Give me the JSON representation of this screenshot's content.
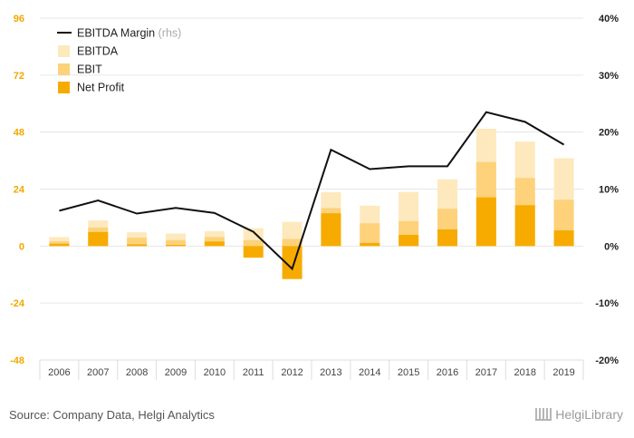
{
  "chart_data": {
    "type": "bar",
    "categories": [
      "2006",
      "2007",
      "2008",
      "2009",
      "2010",
      "2011",
      "2012",
      "2013",
      "2014",
      "2015",
      "2016",
      "2017",
      "2018",
      "2019"
    ],
    "series": [
      {
        "name": "EBITDA",
        "kind": "bar",
        "color": "#fde9bd",
        "values": [
          3.8,
          10.8,
          5.8,
          5.3,
          6.3,
          7.5,
          10.2,
          22.7,
          17.0,
          22.8,
          28.1,
          49.4,
          44.0,
          37.0
        ]
      },
      {
        "name": "EBIT",
        "kind": "bar",
        "color": "#fdd27a",
        "values": [
          2.0,
          7.8,
          3.5,
          2.5,
          3.8,
          2.5,
          3.0,
          16.0,
          9.6,
          10.5,
          15.7,
          35.4,
          28.7,
          19.5
        ]
      },
      {
        "name": "Net Profit",
        "kind": "bar",
        "color": "#f7ab00",
        "values": [
          1.0,
          5.9,
          0.7,
          0.5,
          1.9,
          -4.9,
          -13.9,
          13.8,
          1.3,
          4.7,
          7.0,
          20.5,
          17.2,
          6.6
        ]
      },
      {
        "name": "EBITDA Margin",
        "kind": "line",
        "axis": "right",
        "color": "#111111",
        "values": [
          6.2,
          8.0,
          5.7,
          6.7,
          5.8,
          2.5,
          -4.0,
          16.9,
          13.5,
          14.0,
          14.0,
          23.5,
          21.8,
          17.8
        ]
      }
    ],
    "ylim": [
      -48,
      96
    ],
    "y_ticks": [
      96,
      72,
      48,
      24,
      0,
      -24,
      -48
    ],
    "y2lim": [
      -20,
      40
    ],
    "y2_ticks": [
      "40%",
      "30%",
      "20%",
      "10%",
      "0%",
      "-10%",
      "-20%"
    ],
    "legend": {
      "placement": "top-left",
      "items": [
        {
          "label": "EBITDA Margin",
          "suffix": "(rhs)",
          "marker": "line",
          "color": "#111111"
        },
        {
          "label": "EBITDA",
          "suffix": "",
          "marker": "box",
          "color": "#fde9bd"
        },
        {
          "label": "EBIT",
          "suffix": "",
          "marker": "box",
          "color": "#fdd27a"
        },
        {
          "label": "Net Profit",
          "suffix": "",
          "marker": "box",
          "color": "#f7ab00"
        }
      ]
    },
    "grid": true,
    "left_tick_color": "#f0a800",
    "right_tick_color": "#222222"
  },
  "footer": {
    "source": "Source: Company Data, Helgi Analytics",
    "brand": "HelgiLibrary",
    "brand_icon": "library-icon"
  }
}
